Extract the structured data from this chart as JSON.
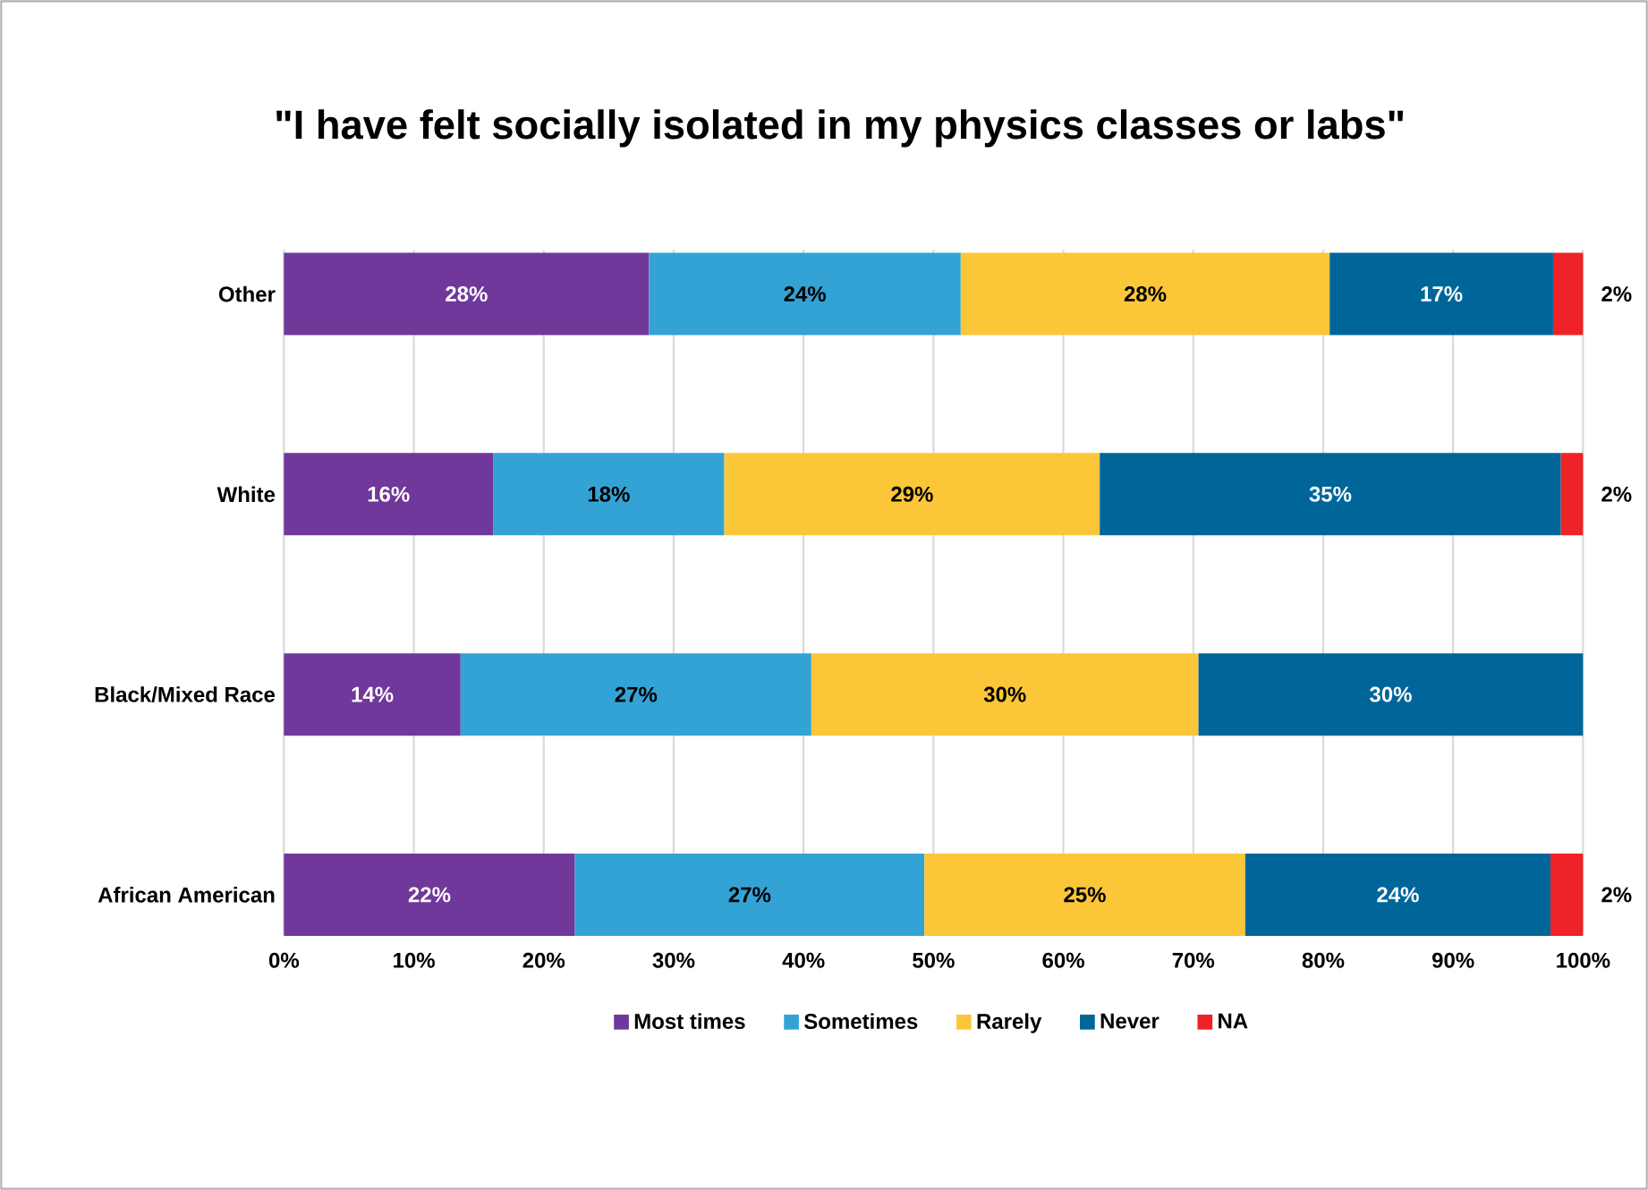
{
  "chart_data": {
    "type": "bar",
    "orientation": "horizontal",
    "stacked": true,
    "title": "\"I have felt socially isolated in my physics classes or labs\"",
    "categories": [
      "Other",
      "White",
      "Black/Mixed Race",
      "African American"
    ],
    "series": [
      {
        "name": "Most times",
        "color": "#70389a",
        "values": [
          28.1,
          16.1,
          13.6,
          22.4
        ],
        "value_labels": [
          "28%",
          "16%",
          "14%",
          "22%"
        ]
      },
      {
        "name": "Sometimes",
        "color": "#33a3d6",
        "values": [
          24.0,
          17.8,
          27.0,
          26.9
        ],
        "value_labels": [
          "24%",
          "18%",
          "27%",
          "27%"
        ]
      },
      {
        "name": "Rarely",
        "color": "#fbc738",
        "values": [
          28.4,
          28.9,
          29.8,
          24.7
        ],
        "value_labels": [
          "28%",
          "29%",
          "30%",
          "25%"
        ]
      },
      {
        "name": "Never",
        "color": "#00669a",
        "values": [
          17.2,
          35.5,
          29.6,
          23.5
        ],
        "value_labels": [
          "17%",
          "35%",
          "30%",
          "24%"
        ]
      },
      {
        "name": "NA",
        "color": "#ee2227",
        "values": [
          2.3,
          1.7,
          null,
          2.5
        ],
        "value_labels": [
          "2%",
          "2%",
          null,
          "2%"
        ]
      }
    ],
    "xlim": [
      0,
      100
    ],
    "xticks": [
      {
        "value": 0,
        "label": "0%"
      },
      {
        "value": 10,
        "label": "10%"
      },
      {
        "value": 20,
        "label": "20%"
      },
      {
        "value": 30,
        "label": "30%"
      },
      {
        "value": 40,
        "label": "40%"
      },
      {
        "value": 50,
        "label": "50%"
      },
      {
        "value": 60,
        "label": "60%"
      },
      {
        "value": 70,
        "label": "70%"
      },
      {
        "value": 80,
        "label": "80%"
      },
      {
        "value": 90,
        "label": "90%"
      },
      {
        "value": 100,
        "label": "100%"
      }
    ],
    "grid": "x",
    "legend": "bottom"
  }
}
